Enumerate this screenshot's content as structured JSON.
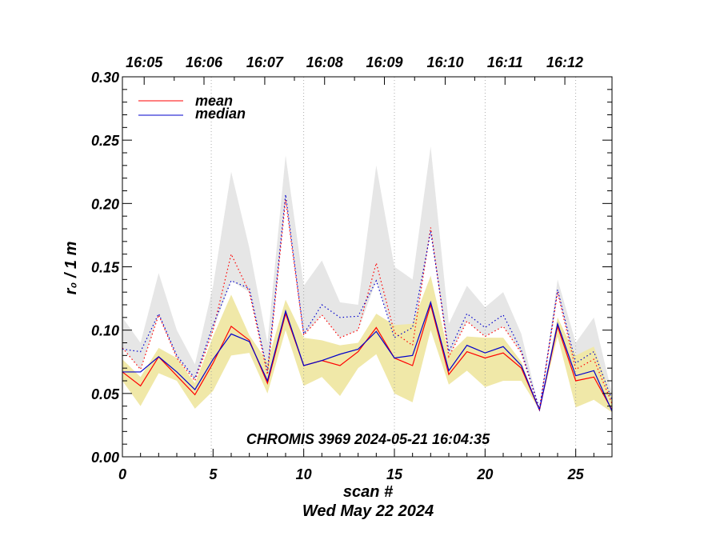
{
  "chart_data": {
    "type": "line",
    "title": "CHROMIS 3969 2024-05-21 16:04:35",
    "xlabel": "scan #",
    "xlabel_sub": "Wed May 22 2024",
    "ylabel": "r₀ / 1 m",
    "xlim": [
      0,
      27
    ],
    "ylim": [
      0,
      0.3
    ],
    "x_ticks": [
      0,
      5,
      10,
      15,
      20,
      25
    ],
    "x_tick_labels": [
      "0",
      "5",
      "10",
      "15",
      "20",
      "25"
    ],
    "y_ticks": [
      0,
      0.05,
      0.1,
      0.15,
      0.2,
      0.25,
      0.3
    ],
    "y_tick_labels": [
      "0.00",
      "0.05",
      "0.10",
      "0.15",
      "0.20",
      "0.25",
      "0.30"
    ],
    "top_axis": {
      "label_positions": [
        1.2,
        4.5,
        7.85,
        11.15,
        14.45,
        17.8,
        21.1,
        24.4
      ],
      "labels": [
        "16:05",
        "16:06",
        "16:07",
        "16:08",
        "16:09",
        "16:10",
        "16:11",
        "16:12"
      ]
    },
    "vertical_gridlines": [
      5,
      10,
      15,
      20,
      25
    ],
    "dotted_time_lines": [
      4.9,
      10.0,
      15.0,
      20.0,
      25.0
    ],
    "legend": {
      "position": "top-left",
      "entries": [
        {
          "label": "mean",
          "color": "#ff0000"
        },
        {
          "label": "median",
          "color": "#0000cc"
        }
      ]
    },
    "x": [
      0,
      1,
      2,
      3,
      4,
      5,
      6,
      7,
      8,
      9,
      10,
      11,
      12,
      13,
      14,
      15,
      16,
      17,
      18,
      19,
      20,
      21,
      22,
      23,
      24,
      25,
      26,
      27
    ],
    "series": [
      {
        "name": "mean",
        "color": "#ff0000",
        "style": "solid",
        "values": [
          0.067,
          0.056,
          0.079,
          0.064,
          0.049,
          0.074,
          0.103,
          0.092,
          0.058,
          0.113,
          0.072,
          0.076,
          0.072,
          0.083,
          0.102,
          0.078,
          0.072,
          0.12,
          0.065,
          0.083,
          0.078,
          0.082,
          0.07,
          0.037,
          0.103,
          0.06,
          0.063,
          0.037
        ]
      },
      {
        "name": "median",
        "color": "#0000cc",
        "style": "solid",
        "values": [
          0.067,
          0.067,
          0.079,
          0.067,
          0.053,
          0.077,
          0.097,
          0.091,
          0.06,
          0.115,
          0.072,
          0.076,
          0.081,
          0.085,
          0.099,
          0.078,
          0.08,
          0.122,
          0.068,
          0.088,
          0.082,
          0.087,
          0.072,
          0.037,
          0.105,
          0.064,
          0.068,
          0.036
        ]
      },
      {
        "name": "mean (upper)",
        "color": "#ff0000",
        "style": "dotted",
        "values": [
          0.086,
          0.069,
          0.112,
          0.078,
          0.06,
          0.1,
          0.16,
          0.13,
          0.065,
          0.203,
          0.096,
          0.112,
          0.094,
          0.1,
          0.153,
          0.098,
          0.088,
          0.181,
          0.079,
          0.107,
          0.095,
          0.103,
          0.082,
          0.037,
          0.13,
          0.069,
          0.077,
          0.042
        ]
      },
      {
        "name": "median (upper)",
        "color": "#0000cc",
        "style": "dotted",
        "values": [
          0.085,
          0.083,
          0.113,
          0.08,
          0.062,
          0.104,
          0.139,
          0.133,
          0.068,
          0.207,
          0.097,
          0.12,
          0.11,
          0.111,
          0.139,
          0.094,
          0.102,
          0.178,
          0.083,
          0.113,
          0.102,
          0.112,
          0.084,
          0.038,
          0.132,
          0.074,
          0.083,
          0.045
        ]
      },
      {
        "name": "max band",
        "color": "#e6e6e6",
        "style": "band",
        "lower": [
          0.086,
          0.069,
          0.112,
          0.078,
          0.06,
          0.1,
          0.139,
          0.13,
          0.065,
          0.203,
          0.096,
          0.112,
          0.094,
          0.1,
          0.139,
          0.094,
          0.088,
          0.178,
          0.079,
          0.107,
          0.095,
          0.103,
          0.082,
          0.037,
          0.13,
          0.069,
          0.077,
          0.042
        ],
        "upper": [
          0.11,
          0.09,
          0.145,
          0.1,
          0.073,
          0.135,
          0.225,
          0.165,
          0.09,
          0.238,
          0.135,
          0.155,
          0.122,
          0.12,
          0.23,
          0.15,
          0.14,
          0.245,
          0.105,
          0.135,
          0.118,
          0.13,
          0.097,
          0.037,
          0.14,
          0.09,
          0.11,
          0.05
        ]
      },
      {
        "name": "mean band",
        "color": "#f0e8a8",
        "style": "band",
        "lower": [
          0.06,
          0.04,
          0.066,
          0.06,
          0.038,
          0.052,
          0.08,
          0.082,
          0.05,
          0.1,
          0.056,
          0.063,
          0.048,
          0.07,
          0.081,
          0.05,
          0.043,
          0.1,
          0.057,
          0.068,
          0.055,
          0.06,
          0.06,
          0.037,
          0.095,
          0.039,
          0.045,
          0.035
        ],
        "upper": [
          0.077,
          0.063,
          0.086,
          0.078,
          0.058,
          0.095,
          0.128,
          0.096,
          0.075,
          0.124,
          0.094,
          0.092,
          0.088,
          0.09,
          0.113,
          0.104,
          0.105,
          0.143,
          0.081,
          0.095,
          0.094,
          0.094,
          0.075,
          0.037,
          0.11,
          0.08,
          0.087,
          0.046
        ]
      }
    ]
  }
}
